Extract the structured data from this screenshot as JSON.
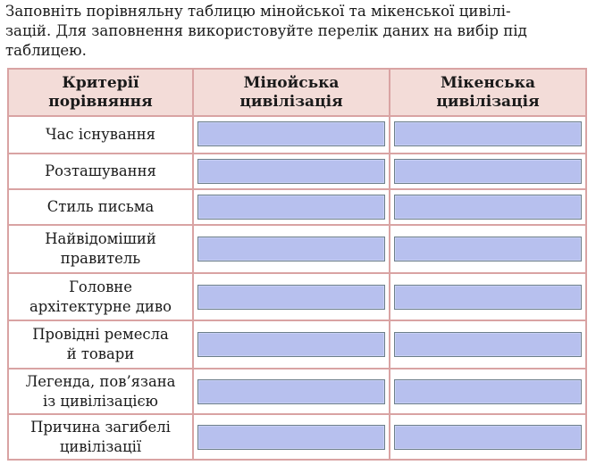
{
  "instructions": [
    "Заповніть порівняльну таблицю мінойської та мікенської цивілі-",
    "зацій. Для заповнення використовуйте перелік даних на вибір під",
    "таблицею."
  ],
  "table": {
    "headers": [
      [
        "Критерії",
        "порівняння"
      ],
      [
        "Мінойська",
        "цивілізація"
      ],
      [
        "Мікенська",
        "цивілізація"
      ]
    ],
    "rows": [
      {
        "label": [
          "Час існування"
        ]
      },
      {
        "label": [
          "Розташування"
        ]
      },
      {
        "label": [
          "Стиль письма"
        ]
      },
      {
        "label": [
          "Найвідоміший",
          "правитель"
        ]
      },
      {
        "label": [
          "Головне",
          "архітектурне диво"
        ]
      },
      {
        "label": [
          "Провідні ремесла",
          "й товари"
        ]
      },
      {
        "label": [
          "Легенда, пов’язана",
          "із цивілізацією"
        ]
      },
      {
        "label": [
          "Причина загибелі",
          "цивілізації"
        ]
      }
    ]
  },
  "colors": {
    "border": "#d9a3a3",
    "header_bg": "#f3dcd8",
    "field_bg": "#b7c0ee",
    "field_border": "#6d7f8a"
  }
}
